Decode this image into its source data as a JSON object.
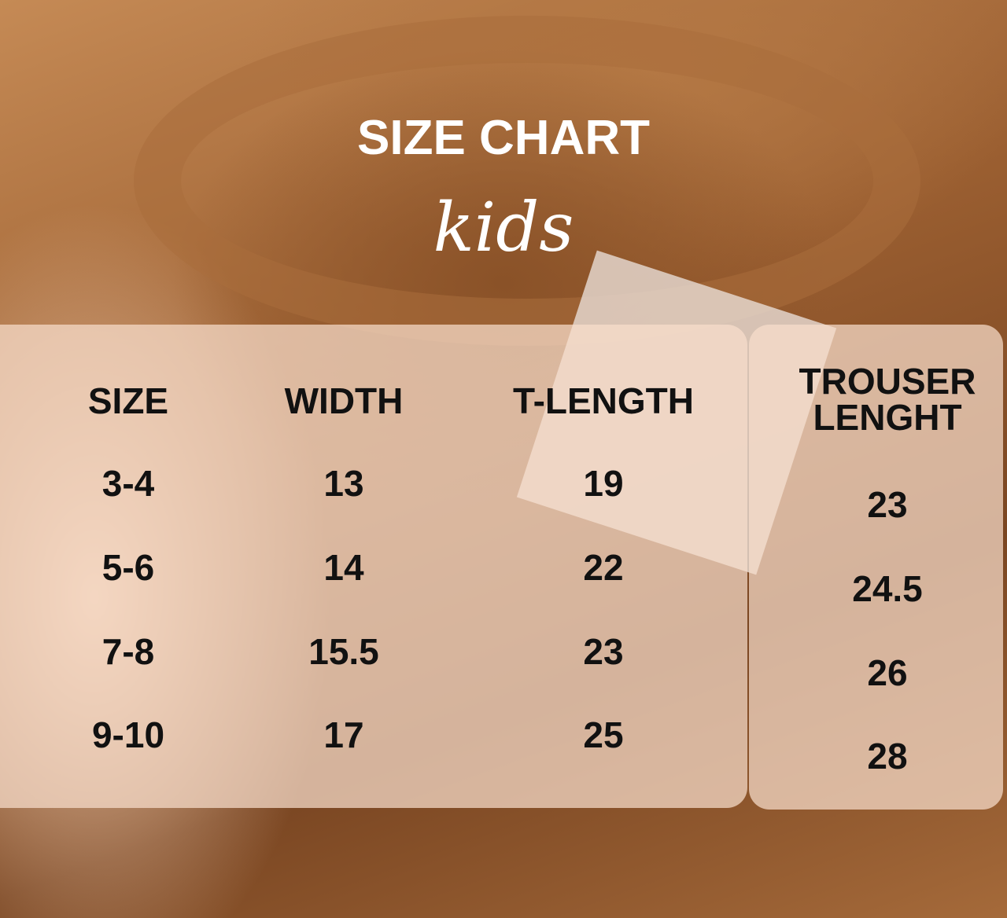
{
  "title": "SIZE CHART",
  "subtitle": "kids",
  "colors": {
    "panel": "#f8decc",
    "text": "#111111",
    "title": "#ffffff",
    "background": "#9b5f31"
  },
  "table": {
    "headers": [
      "SIZE",
      "WIDTH",
      "T-LENGTH",
      "TROUSER LENGHT"
    ],
    "header_trouser_lines": [
      "TROUSER",
      "LENGHT"
    ],
    "rows": [
      {
        "size": "3-4",
        "width": "13",
        "t_length": "19",
        "trouser_length": "23"
      },
      {
        "size": "5-6",
        "width": "14",
        "t_length": "22",
        "trouser_length": "24.5"
      },
      {
        "size": "7-8",
        "width": "15.5",
        "t_length": "23",
        "trouser_length": "26"
      },
      {
        "size": "9-10",
        "width": "17",
        "t_length": "25",
        "trouser_length": "28"
      }
    ]
  }
}
